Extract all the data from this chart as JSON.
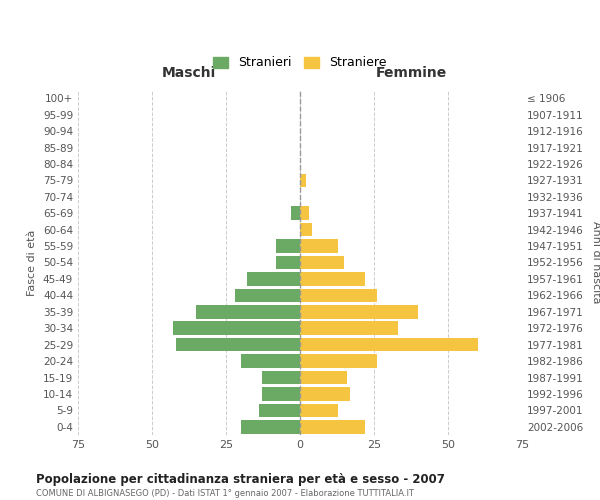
{
  "age_groups": [
    "0-4",
    "5-9",
    "10-14",
    "15-19",
    "20-24",
    "25-29",
    "30-34",
    "35-39",
    "40-44",
    "45-49",
    "50-54",
    "55-59",
    "60-64",
    "65-69",
    "70-74",
    "75-79",
    "80-84",
    "85-89",
    "90-94",
    "95-99",
    "100+"
  ],
  "birth_years": [
    "2002-2006",
    "1997-2001",
    "1992-1996",
    "1987-1991",
    "1982-1986",
    "1977-1981",
    "1972-1976",
    "1967-1971",
    "1962-1966",
    "1957-1961",
    "1952-1956",
    "1947-1951",
    "1942-1946",
    "1937-1941",
    "1932-1936",
    "1927-1931",
    "1922-1926",
    "1917-1921",
    "1912-1916",
    "1907-1911",
    "≤ 1906"
  ],
  "maschi": [
    20,
    14,
    13,
    13,
    20,
    42,
    43,
    35,
    22,
    18,
    8,
    8,
    0,
    3,
    0,
    0,
    0,
    0,
    0,
    0,
    0
  ],
  "femmine": [
    22,
    13,
    17,
    16,
    26,
    60,
    33,
    40,
    26,
    22,
    15,
    13,
    4,
    3,
    0,
    2,
    0,
    0,
    0,
    0,
    0
  ],
  "maschi_color": "#6aaa64",
  "femmine_color": "#f5c542",
  "background_color": "#ffffff",
  "grid_color": "#cccccc",
  "title": "Popolazione per cittadinanza straniera per età e sesso - 2007",
  "subtitle": "COMUNE DI ALBIGNASEGO (PD) - Dati ISTAT 1° gennaio 2007 - Elaborazione TUTTITALIA.IT",
  "xlabel_left": "Maschi",
  "xlabel_right": "Femmine",
  "ylabel_left": "Fasce di età",
  "ylabel_right": "Anni di nascita",
  "xlim": 75,
  "legend_stranieri": "Stranieri",
  "legend_straniere": "Straniere"
}
